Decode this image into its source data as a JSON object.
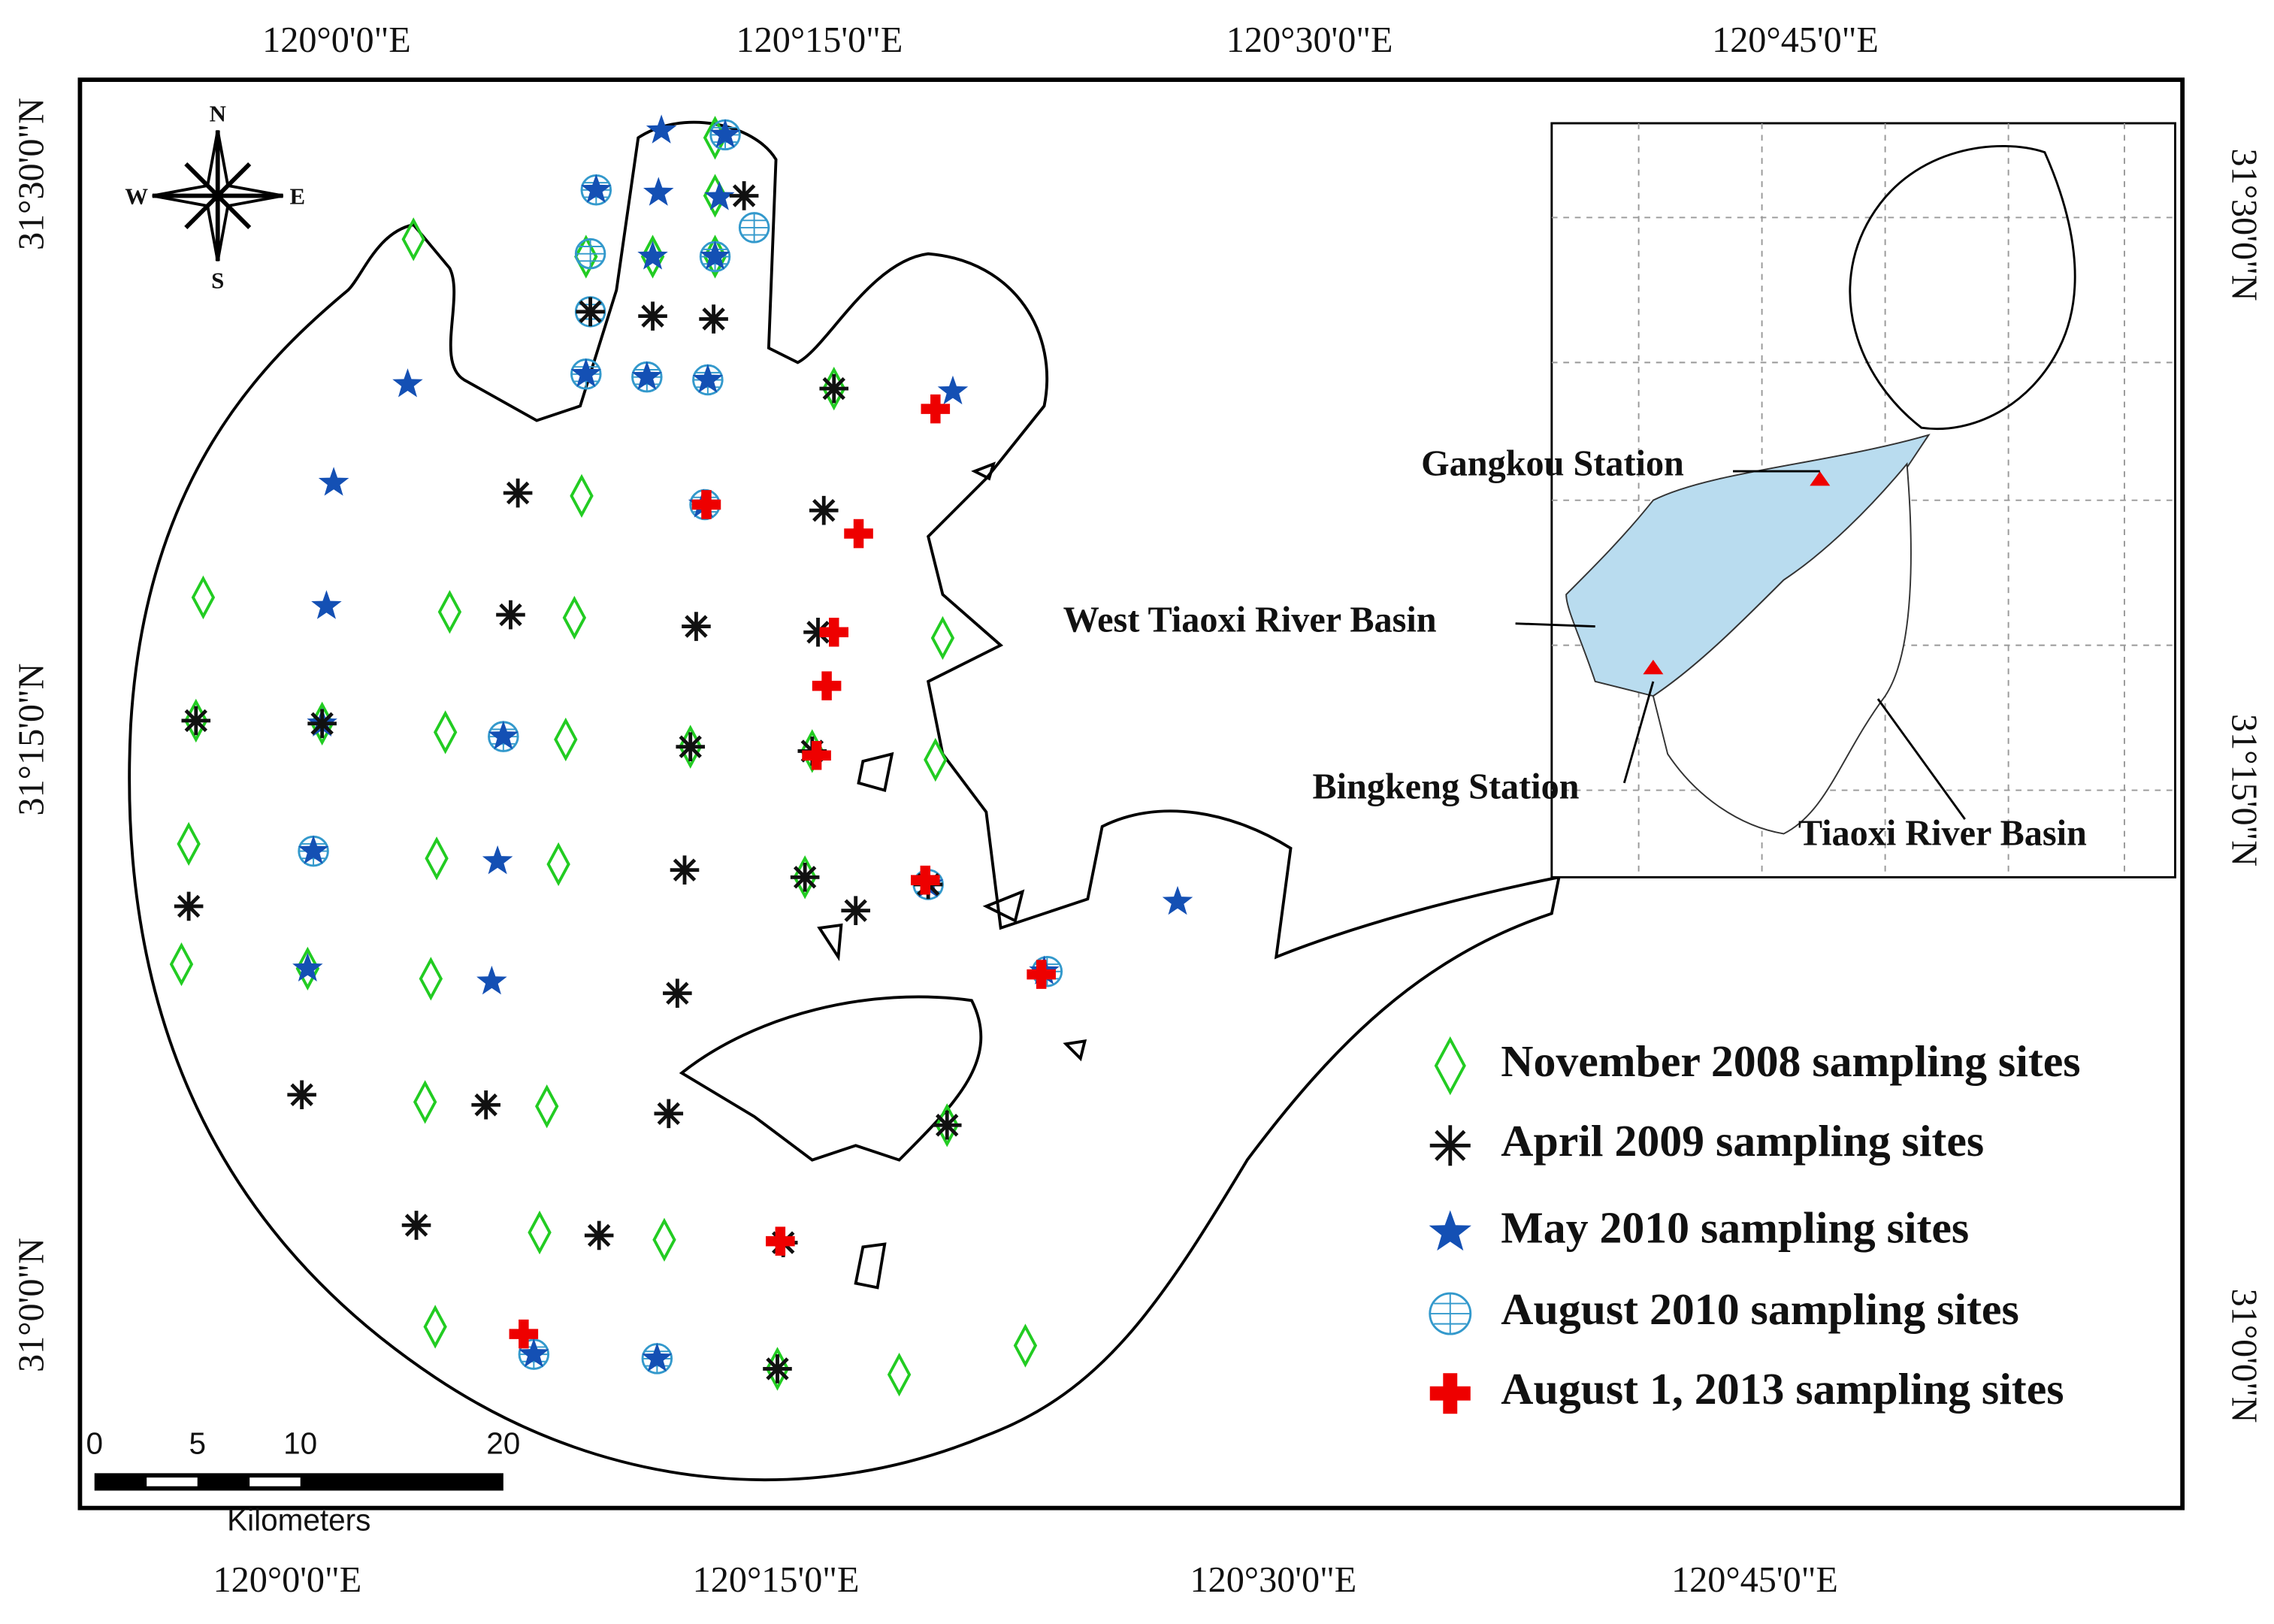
{
  "axes": {
    "top": [
      "120°0'0\"E",
      "120°15'0\"E",
      "120°30'0\"E",
      "120°45'0\"E"
    ],
    "bottom": [
      "120°0'0\"E",
      "120°15'0\"E",
      "120°30'0\"E",
      "120°45'0\"E"
    ],
    "left": [
      "31°30'0\"N",
      "31°15'0\"N",
      "31°0'0\"N"
    ],
    "right": [
      "31°30'0\"N",
      "31°15'0\"N",
      "31°0'0\"N"
    ]
  },
  "compass": {
    "n": "N",
    "s": "S",
    "e": "E",
    "w": "W"
  },
  "scale_bar": {
    "ticks": [
      "0",
      "5",
      "10",
      "20"
    ],
    "unit": "Kilometers"
  },
  "inset": {
    "labels": [
      "Gangkou Station",
      "West Tiaoxi River Basin",
      "Bingkeng Station",
      "Tiaoxi River Basin"
    ]
  },
  "legend": {
    "items": [
      "November 2008 sampling sites",
      "April 2009 sampling sites",
      "May 2010 sampling sites",
      "August 2010 sampling sites",
      "August 1, 2013 sampling sites"
    ]
  }
}
